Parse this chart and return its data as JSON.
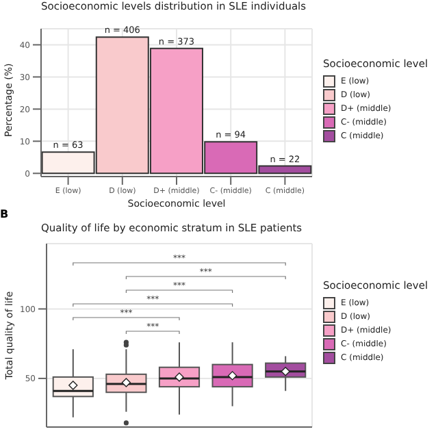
{
  "chart_data": [
    {
      "type": "bar",
      "title": "Socioeconomic levels distribution in SLE individuals",
      "xlabel": "Socioeconomic level",
      "ylabel": "Percentage (%)",
      "legend_title": "Socioeconomic level",
      "legend": "right",
      "grid": true,
      "stacked": true,
      "categories": [
        "E (low)",
        "D (low)",
        "D+ (middle)",
        "C- (middle)",
        "C (middle)"
      ],
      "series": [
        {
          "name": "E (low)",
          "color": "#fdf0ec",
          "values": [
            6.6,
            null,
            null,
            null,
            null
          ]
        },
        {
          "name": "D (low)",
          "color": "#f9cacc",
          "values": [
            null,
            42.4,
            null,
            null,
            null
          ]
        },
        {
          "name": "D+ (middle)",
          "color": "#f6a0c6",
          "values": [
            null,
            null,
            38.9,
            null,
            null
          ]
        },
        {
          "name": "C- (middle)",
          "color": "#d96ab6",
          "values": [
            null,
            null,
            null,
            9.8,
            null
          ]
        },
        {
          "name": "C (middle)",
          "color": "#a34d9f",
          "values": [
            null,
            null,
            null,
            null,
            2.3
          ]
        }
      ],
      "ylim": [
        -1,
        45
      ],
      "yticks": [
        0,
        10,
        20,
        30,
        40
      ],
      "annotations": [
        {
          "text": "n = 63",
          "x": "E (low)",
          "y": 6.6
        },
        {
          "text": "n = 406",
          "x": "D (low)",
          "y": 42.4
        },
        {
          "text": "n = 373",
          "x": "D+ (middle)",
          "y": 38.9
        },
        {
          "text": "n = 94",
          "x": "C- (middle)",
          "y": 9.8
        },
        {
          "text": "n = 22",
          "x": "C (middle)",
          "y": 2.3
        }
      ]
    },
    {
      "type": "box",
      "title": "Quality of life by economic stratum in SLE patients",
      "ylabel": "Total quality of life",
      "legend_title": "Socioeconomic level",
      "legend": "right",
      "grid": true,
      "tick_labels": "y",
      "categories": [
        null,
        null,
        null,
        null,
        null
      ],
      "series": [
        {
          "name": "E (low)",
          "color": "#fdf0ec",
          "boxes": [
            {
              "low": 22,
              "q1": 37,
              "median": 41,
              "q3": 51,
              "high": 71,
              "mean": 45
            },
            null,
            null,
            null,
            null
          ]
        },
        {
          "name": "D (low)",
          "color": "#f9cacc",
          "boxes": [
            null,
            {
              "low": 26,
              "q1": 40,
              "median": 46,
              "q3": 53,
              "high": 71,
              "mean": 47,
              "outliers": [
                76,
                74,
                18
              ]
            },
            null,
            null,
            null
          ]
        },
        {
          "name": "D+ (middle)",
          "color": "#f6a0c6",
          "boxes": [
            null,
            null,
            {
              "low": 24,
              "q1": 44,
              "median": 50,
              "q3": 58,
              "high": 76,
              "mean": 51
            },
            null,
            null
          ]
        },
        {
          "name": "C- (middle)",
          "color": "#d96ab6",
          "boxes": [
            null,
            null,
            null,
            {
              "low": 30,
              "q1": 44,
              "median": 51,
              "q3": 60,
              "high": 76,
              "mean": 52
            },
            null
          ]
        },
        {
          "name": "C (middle)",
          "color": "#a34d9f",
          "boxes": [
            null,
            null,
            null,
            null,
            {
              "low": 41,
              "q1": 51,
              "median": 55,
              "q3": 61,
              "high": 66,
              "mean": 55
            }
          ]
        }
      ],
      "ylim": [
        15,
        147
      ],
      "yticks": [
        50,
        100
      ],
      "annotations": [
        "B",
        "***",
        "***",
        "***",
        "***",
        "***",
        "***"
      ]
    }
  ]
}
